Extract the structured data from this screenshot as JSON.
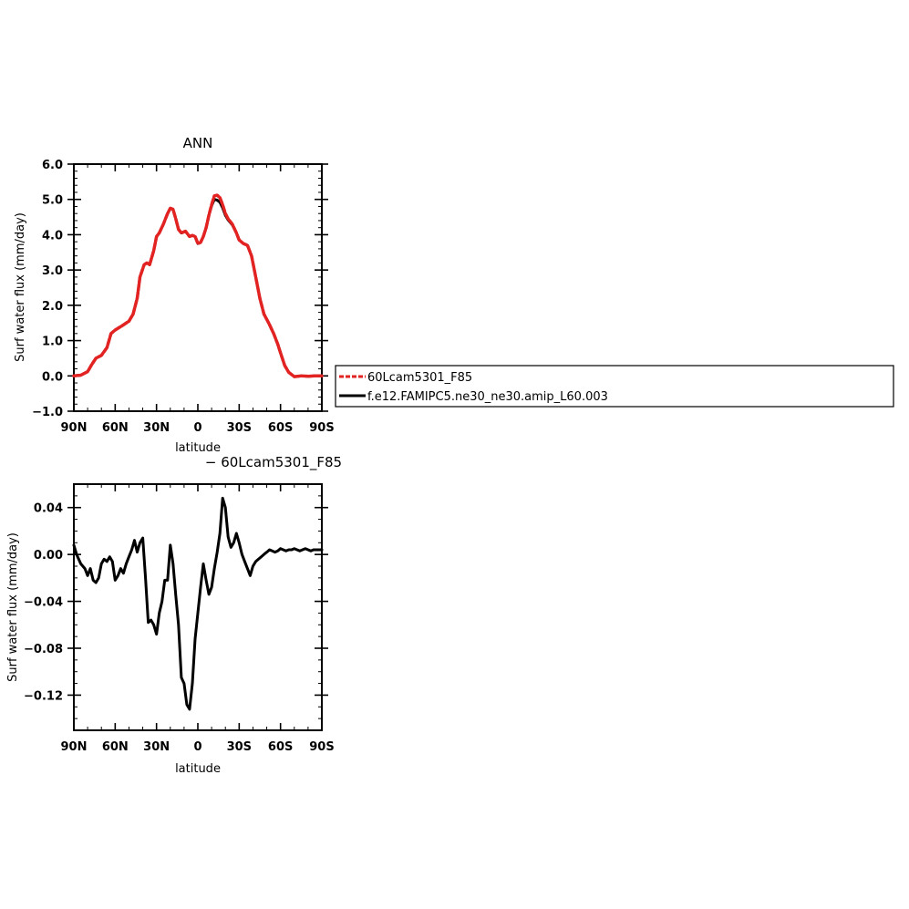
{
  "chart_data": [
    {
      "type": "line",
      "title": "ANN",
      "xlabel": "latitude",
      "ylabel": "Surf water flux (mm/day)",
      "xlim": [
        90,
        -90
      ],
      "ylim": [
        -1.0,
        6.0
      ],
      "x_ticks": [
        90,
        60,
        30,
        0,
        -30,
        -60,
        -90
      ],
      "x_tick_labels": [
        "90N",
        "60N",
        "30N",
        "0",
        "30S",
        "60S",
        "90S"
      ],
      "y_ticks": [
        -1.0,
        0.0,
        1.0,
        2.0,
        3.0,
        4.0,
        5.0,
        6.0
      ],
      "y_tick_labels": [
        "−1.0",
        "0.0",
        "1.0",
        "2.0",
        "3.0",
        "4.0",
        "5.0",
        "6.0"
      ],
      "grid": false,
      "legend_position": "right",
      "series": [
        {
          "name": "60Lcam5301_F85",
          "color": "#e32222",
          "dash": "dashed",
          "x": [
            90,
            85,
            80,
            77,
            74,
            70,
            66,
            63,
            60,
            55,
            50,
            47,
            44,
            42,
            39,
            37,
            35,
            32,
            30,
            28,
            25,
            22,
            20,
            18,
            16,
            14,
            12,
            9,
            6,
            4,
            2,
            0,
            -2,
            -4,
            -6,
            -8,
            -10,
            -12,
            -14,
            -16,
            -18,
            -20,
            -22,
            -25,
            -28,
            -30,
            -33,
            -36,
            -39,
            -42,
            -45,
            -48,
            -50,
            -52,
            -55,
            -58,
            -60,
            -63,
            -66,
            -70,
            -75,
            -80,
            -85,
            -90
          ],
          "y": [
            0.0,
            0.02,
            0.12,
            0.32,
            0.5,
            0.58,
            0.8,
            1.2,
            1.3,
            1.42,
            1.55,
            1.75,
            2.2,
            2.8,
            3.15,
            3.2,
            3.15,
            3.55,
            3.95,
            4.05,
            4.3,
            4.6,
            4.75,
            4.72,
            4.45,
            4.15,
            4.05,
            4.1,
            3.95,
            3.98,
            3.95,
            3.75,
            3.78,
            3.95,
            4.2,
            4.55,
            4.85,
            5.1,
            5.12,
            5.05,
            4.85,
            4.6,
            4.45,
            4.3,
            4.05,
            3.85,
            3.75,
            3.7,
            3.4,
            2.8,
            2.2,
            1.75,
            1.6,
            1.45,
            1.2,
            0.9,
            0.65,
            0.3,
            0.1,
            -0.02,
            0.0,
            -0.01,
            0.0,
            0.0
          ]
        },
        {
          "name": "f.e12.FAMIPC5.ne30_ne30.amip_L60.003",
          "color": "#000000",
          "dash": "solid",
          "x": [
            90,
            85,
            80,
            77,
            74,
            70,
            66,
            63,
            60,
            55,
            50,
            47,
            44,
            42,
            39,
            37,
            35,
            32,
            30,
            28,
            25,
            22,
            20,
            18,
            16,
            14,
            12,
            9,
            6,
            4,
            2,
            0,
            -2,
            -4,
            -6,
            -8,
            -10,
            -12,
            -14,
            -16,
            -18,
            -20,
            -22,
            -25,
            -28,
            -30,
            -33,
            -36,
            -39,
            -42,
            -45,
            -48,
            -50,
            -52,
            -55,
            -58,
            -60,
            -63,
            -66,
            -70,
            -75,
            -80,
            -85,
            -90
          ],
          "y": [
            0.0,
            0.02,
            0.12,
            0.32,
            0.5,
            0.58,
            0.8,
            1.2,
            1.3,
            1.42,
            1.55,
            1.75,
            2.2,
            2.8,
            3.15,
            3.2,
            3.15,
            3.55,
            3.95,
            4.05,
            4.3,
            4.6,
            4.75,
            4.72,
            4.45,
            4.15,
            4.05,
            4.1,
            3.95,
            3.98,
            3.95,
            3.75,
            3.78,
            3.95,
            4.2,
            4.55,
            4.82,
            5.0,
            4.98,
            4.92,
            4.76,
            4.55,
            4.42,
            4.28,
            4.05,
            3.85,
            3.75,
            3.7,
            3.4,
            2.8,
            2.2,
            1.75,
            1.6,
            1.45,
            1.2,
            0.9,
            0.65,
            0.3,
            0.1,
            -0.02,
            0.0,
            -0.01,
            0.0,
            0.0
          ]
        }
      ]
    },
    {
      "type": "line",
      "title": "− 60Lcam5301_F85",
      "xlabel": "latitude",
      "ylabel": "Surf water flux (mm/day)",
      "xlim": [
        90,
        -90
      ],
      "ylim": [
        -0.15,
        0.06
      ],
      "x_ticks": [
        90,
        60,
        30,
        0,
        -30,
        -60,
        -90
      ],
      "x_tick_labels": [
        "90N",
        "60N",
        "30N",
        "0",
        "30S",
        "60S",
        "90S"
      ],
      "y_ticks": [
        -0.12,
        -0.08,
        -0.04,
        0.0,
        0.04
      ],
      "y_tick_labels": [
        "−0.12",
        "−0.08",
        "−0.04",
        "0.00",
        "0.04"
      ],
      "grid": false,
      "series": [
        {
          "name": "",
          "color": "#000000",
          "dash": "solid",
          "x": [
            90,
            88,
            85,
            82,
            80,
            78,
            76,
            74,
            72,
            70,
            68,
            66,
            64,
            62,
            60,
            58,
            56,
            54,
            52,
            50,
            48,
            46,
            44,
            42,
            40,
            38,
            36,
            34,
            32,
            30,
            28,
            26,
            24,
            22,
            20,
            18,
            16,
            14,
            12,
            10,
            8,
            6,
            4,
            2,
            0,
            -2,
            -4,
            -6,
            -8,
            -10,
            -12,
            -14,
            -16,
            -18,
            -20,
            -22,
            -24,
            -26,
            -28,
            -30,
            -32,
            -34,
            -36,
            -38,
            -40,
            -42,
            -44,
            -46,
            -48,
            -50,
            -52,
            -54,
            -56,
            -58,
            -60,
            -62,
            -64,
            -66,
            -68,
            -70,
            -72,
            -74,
            -76,
            -78,
            -80,
            -82,
            -84,
            -86,
            -88,
            -90
          ],
          "y": [
            0.008,
            0.0,
            -0.008,
            -0.012,
            -0.018,
            -0.012,
            -0.022,
            -0.024,
            -0.02,
            -0.008,
            -0.004,
            -0.006,
            -0.002,
            -0.006,
            -0.022,
            -0.018,
            -0.012,
            -0.016,
            -0.008,
            -0.002,
            0.004,
            0.012,
            0.002,
            0.01,
            0.014,
            -0.02,
            -0.058,
            -0.056,
            -0.06,
            -0.068,
            -0.05,
            -0.04,
            -0.022,
            -0.022,
            0.008,
            -0.008,
            -0.035,
            -0.06,
            -0.105,
            -0.11,
            -0.128,
            -0.132,
            -0.11,
            -0.072,
            -0.05,
            -0.028,
            -0.008,
            -0.022,
            -0.034,
            -0.028,
            -0.012,
            0.002,
            0.018,
            0.048,
            0.04,
            0.015,
            0.006,
            0.01,
            0.018,
            0.01,
            0.0,
            -0.006,
            -0.012,
            -0.018,
            -0.01,
            -0.006,
            -0.004,
            -0.002,
            0.0,
            0.002,
            0.004,
            0.003,
            0.002,
            0.003,
            0.005,
            0.004,
            0.003,
            0.004,
            0.004,
            0.005,
            0.004,
            0.003,
            0.004,
            0.005,
            0.004,
            0.003,
            0.004,
            0.004,
            0.004,
            0.004
          ]
        }
      ]
    }
  ]
}
